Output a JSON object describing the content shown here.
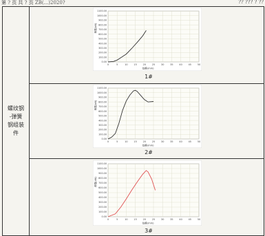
{
  "header": {
    "left": "第 ? 页 共 ? 页 ZB(...)2020?",
    "right": "?? ??? ? ??"
  },
  "row_label": "螺纹钢\n-弹簧\n钢组装\n件",
  "chart_data": [
    {
      "type": "line",
      "title": "",
      "xlabel": "位移(mm)",
      "ylabel": "荷载(kN)",
      "xlim": [
        0,
        50
      ],
      "ylim": [
        0,
        1100
      ],
      "x_ticks": [
        0,
        5,
        10,
        15,
        20,
        25,
        30,
        35,
        40,
        45,
        50
      ],
      "y_ticks": [
        0,
        100,
        200,
        300,
        400,
        500,
        600,
        700,
        800,
        900,
        1000,
        1100
      ],
      "grid": true,
      "series": [
        {
          "color": "#333333",
          "x": [
            0,
            3,
            5,
            7,
            10,
            13,
            16,
            19,
            21
          ],
          "y": [
            0,
            10,
            40,
            90,
            170,
            290,
            420,
            560,
            680
          ]
        }
      ],
      "caption": "1#"
    },
    {
      "type": "line",
      "title": "",
      "xlabel": "位移(mm)",
      "ylabel": "荷载(kN)",
      "xlim": [
        0,
        50
      ],
      "ylim": [
        0,
        1100
      ],
      "x_ticks": [
        0,
        5,
        10,
        15,
        20,
        25,
        30,
        35,
        40,
        45,
        50
      ],
      "y_ticks": [
        0,
        100,
        200,
        300,
        400,
        500,
        600,
        700,
        800,
        900,
        1000,
        1100
      ],
      "grid": true,
      "series": [
        {
          "color": "#333333",
          "x": [
            0,
            2,
            4,
            6,
            8,
            10,
            12,
            14,
            15,
            16,
            18,
            20,
            22,
            25
          ],
          "y": [
            0,
            40,
            120,
            340,
            620,
            820,
            950,
            1040,
            1050,
            1030,
            940,
            850,
            800,
            810
          ]
        }
      ],
      "caption": "2#"
    },
    {
      "type": "line",
      "title": "",
      "xlabel": "位移(mm)",
      "ylabel": "荷载(kN)",
      "xlim": [
        0,
        50
      ],
      "ylim": [
        0,
        1100
      ],
      "x_ticks": [
        0,
        5,
        10,
        15,
        20,
        25,
        30,
        35,
        40,
        45,
        50
      ],
      "y_ticks": [
        0,
        100,
        200,
        300,
        400,
        500,
        600,
        700,
        800,
        900,
        1000,
        1100
      ],
      "grid": true,
      "series": [
        {
          "color": "#e05050",
          "x": [
            0,
            4,
            7,
            10,
            13,
            16,
            19,
            21,
            22,
            24,
            26
          ],
          "y": [
            0,
            60,
            200,
            370,
            550,
            720,
            880,
            960,
            930,
            780,
            550
          ]
        }
      ],
      "caption": "3#"
    }
  ]
}
